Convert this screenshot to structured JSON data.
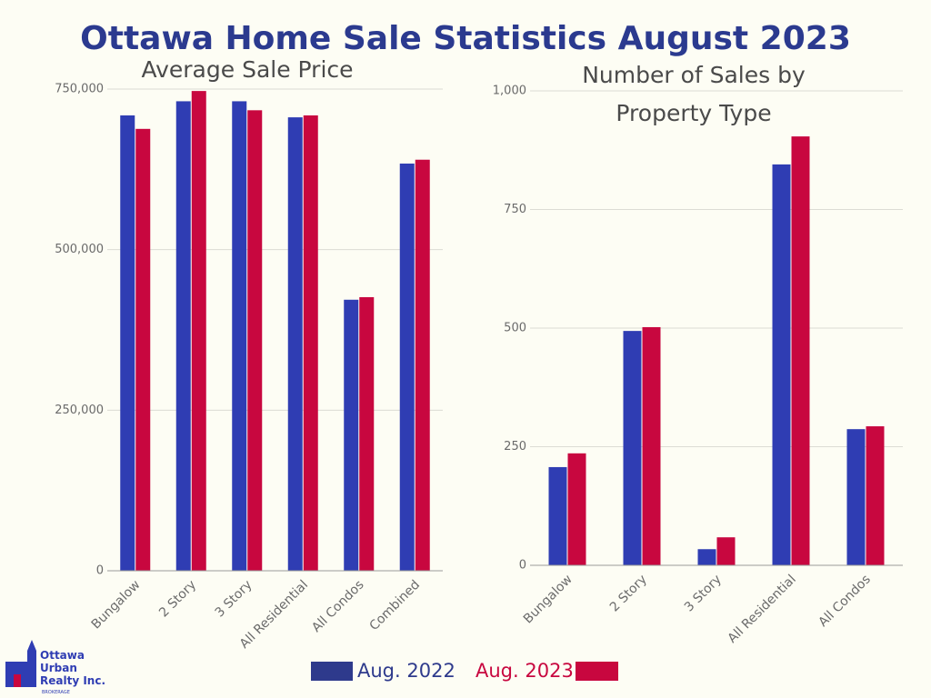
{
  "title": "Ottawa Home Sale Statistics August 2023",
  "chart_data": [
    {
      "type": "bar",
      "title": "Average Sale Price",
      "categories": [
        "Bungalow",
        "2 Story",
        "3 Story",
        "All Residential",
        "All Condos",
        "Combined"
      ],
      "series": [
        {
          "name": "Aug. 2022",
          "color": "#2f3db3",
          "values": [
            709000,
            731000,
            731000,
            706000,
            422000,
            634000
          ]
        },
        {
          "name": "Aug. 2023",
          "color": "#c8073f",
          "values": [
            688000,
            747000,
            717000,
            709000,
            426000,
            640000
          ]
        }
      ],
      "ylim": [
        0,
        750000
      ],
      "yticks": [
        0,
        {
          "value": 250000,
          "label": "250,000"
        },
        {
          "value": 500000,
          "label": "500,000"
        },
        {
          "value": 750000,
          "label": "750,000"
        }
      ],
      "grid": true
    },
    {
      "type": "bar",
      "title": "Number of Sales by Property Type",
      "categories": [
        "Bungalow",
        "2 Story",
        "3 Story",
        "All Residential",
        "All Condos"
      ],
      "series": [
        {
          "color": "#2f3db3",
          "values": [
            207,
            494,
            34,
            845,
            287
          ]
        },
        {
          "color": "#c8073f",
          "values": [
            236,
            502,
            59,
            904,
            293
          ]
        }
      ],
      "ylim": [
        0,
        1000
      ],
      "yticks": [
        0,
        250,
        500,
        750,
        {
          "value": 1000,
          "label": "1,000"
        }
      ],
      "grid": true
    }
  ],
  "logo": {
    "lines": [
      "Ottawa",
      "Urban",
      "Realty Inc."
    ],
    "tagline": "BROKERAGE"
  }
}
